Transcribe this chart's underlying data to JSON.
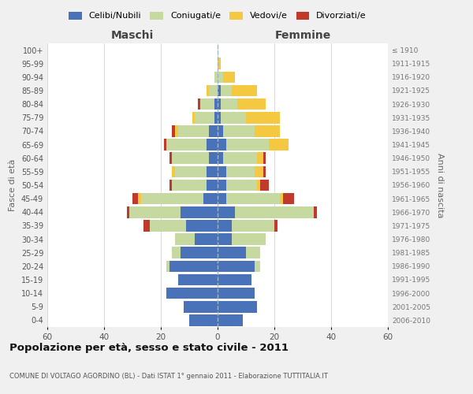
{
  "age_groups": [
    "0-4",
    "5-9",
    "10-14",
    "15-19",
    "20-24",
    "25-29",
    "30-34",
    "35-39",
    "40-44",
    "45-49",
    "50-54",
    "55-59",
    "60-64",
    "65-69",
    "70-74",
    "75-79",
    "80-84",
    "85-89",
    "90-94",
    "95-99",
    "100+"
  ],
  "birth_years": [
    "2006-2010",
    "2001-2005",
    "1996-2000",
    "1991-1995",
    "1986-1990",
    "1981-1985",
    "1976-1980",
    "1971-1975",
    "1966-1970",
    "1961-1965",
    "1956-1960",
    "1951-1955",
    "1946-1950",
    "1941-1945",
    "1936-1940",
    "1931-1935",
    "1926-1930",
    "1921-1925",
    "1916-1920",
    "1911-1915",
    "≤ 1910"
  ],
  "males": {
    "celibi": [
      10,
      12,
      18,
      14,
      17,
      13,
      8,
      11,
      13,
      5,
      4,
      4,
      3,
      4,
      3,
      1,
      1,
      0,
      0,
      0,
      0
    ],
    "coniugati": [
      0,
      0,
      0,
      0,
      1,
      3,
      7,
      13,
      18,
      22,
      12,
      11,
      13,
      14,
      11,
      7,
      5,
      3,
      1,
      0,
      0
    ],
    "vedovi": [
      0,
      0,
      0,
      0,
      0,
      0,
      0,
      0,
      0,
      1,
      0,
      1,
      0,
      0,
      1,
      1,
      0,
      1,
      0,
      0,
      0
    ],
    "divorziati": [
      0,
      0,
      0,
      0,
      0,
      0,
      0,
      2,
      1,
      2,
      1,
      0,
      1,
      1,
      1,
      0,
      1,
      0,
      0,
      0,
      0
    ]
  },
  "females": {
    "nubili": [
      9,
      14,
      13,
      12,
      13,
      10,
      5,
      5,
      6,
      3,
      3,
      3,
      2,
      3,
      2,
      1,
      1,
      1,
      0,
      0,
      0
    ],
    "coniugate": [
      0,
      0,
      0,
      0,
      2,
      5,
      12,
      15,
      28,
      19,
      11,
      10,
      12,
      15,
      11,
      9,
      6,
      4,
      2,
      0,
      0
    ],
    "vedove": [
      0,
      0,
      0,
      0,
      0,
      0,
      0,
      0,
      0,
      1,
      1,
      3,
      2,
      7,
      9,
      12,
      10,
      9,
      4,
      1,
      0
    ],
    "divorziate": [
      0,
      0,
      0,
      0,
      0,
      0,
      0,
      1,
      1,
      4,
      3,
      1,
      1,
      0,
      0,
      0,
      0,
      0,
      0,
      0,
      0
    ]
  },
  "colors": {
    "celibi_nubili": "#4a72b8",
    "coniugati": "#c5d9a0",
    "vedovi": "#f5c842",
    "divorziati": "#c0392b"
  },
  "title": "Popolazione per età, sesso e stato civile - 2011",
  "subtitle": "COMUNE DI VOLTAGO AGORDINO (BL) - Dati ISTAT 1° gennaio 2011 - Elaborazione TUTTITALIA.IT",
  "xlabel_left": "Maschi",
  "xlabel_right": "Femmine",
  "ylabel_left": "Fasce di età",
  "ylabel_right": "Anni di nascita",
  "xlim": 60,
  "background_color": "#f0f0f0",
  "plot_bg_color": "#ffffff",
  "legend_labels": [
    "Celibi/Nubili",
    "Coniugati/e",
    "Vedovi/e",
    "Divorziati/e"
  ]
}
